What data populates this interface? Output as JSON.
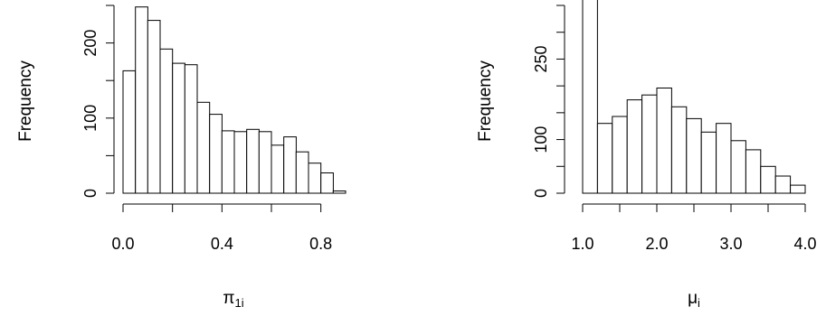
{
  "chart_data": [
    {
      "type": "bar",
      "chart_kind": "histogram",
      "xlabel": "π",
      "xlabel_sub": "1i",
      "ylabel": "Frequency",
      "bin_start": 0.0,
      "bin_width": 0.05,
      "values": [
        163,
        248,
        230,
        192,
        173,
        171,
        121,
        105,
        83,
        82,
        85,
        82,
        64,
        75,
        55,
        40,
        27,
        3
      ],
      "xlim": [
        0.0,
        0.9
      ],
      "ylim": [
        0,
        250
      ],
      "xticks": [
        0.0,
        0.2,
        0.4,
        0.6,
        0.8
      ],
      "xtick_labels": [
        "0.0",
        "",
        "0.4",
        "",
        "0.8"
      ],
      "yticks": [
        0,
        50,
        100,
        150,
        200,
        250
      ],
      "ytick_labels": [
        "0",
        "",
        "100",
        "",
        "200",
        ""
      ],
      "grid": false
    },
    {
      "type": "bar",
      "chart_kind": "histogram",
      "xlabel": "μ",
      "xlabel_sub": "i",
      "ylabel": "Frequency",
      "bin_start": 1.0,
      "bin_width": 0.2,
      "values": [
        362,
        130,
        143,
        174,
        183,
        196,
        161,
        139,
        114,
        130,
        98,
        81,
        50,
        32,
        15
      ],
      "xlim": [
        1.0,
        4.0
      ],
      "ylim": [
        0,
        350
      ],
      "xticks": [
        1.0,
        1.5,
        2.0,
        2.5,
        3.0,
        3.5,
        4.0
      ],
      "xtick_labels": [
        "1.0",
        "",
        "2.0",
        "",
        "3.0",
        "",
        "4.0"
      ],
      "yticks": [
        0,
        50,
        100,
        150,
        200,
        250,
        300,
        350
      ],
      "ytick_labels": [
        "0",
        "",
        "100",
        "",
        "",
        "250",
        "",
        ""
      ],
      "grid": false
    }
  ]
}
